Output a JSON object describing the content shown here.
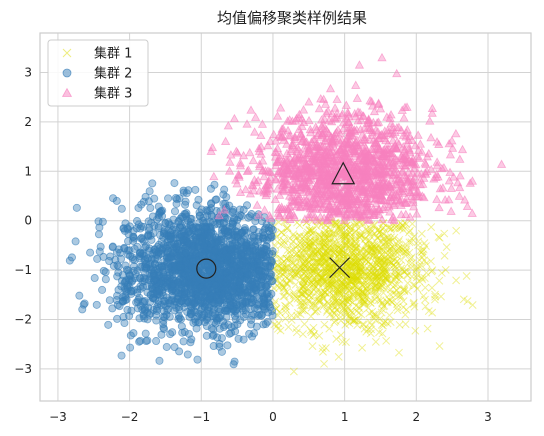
{
  "chart_data": {
    "type": "scatter",
    "title": "均值偏移聚类样例结果",
    "xlabel": "",
    "ylabel": "",
    "xlim": [
      -3.25,
      3.6
    ],
    "ylim": [
      -3.65,
      3.8
    ],
    "xticks": [
      -3,
      -2,
      -1,
      0,
      1,
      2,
      3
    ],
    "yticks": [
      -3,
      -2,
      -1,
      0,
      1,
      2,
      3
    ],
    "grid": true,
    "legend_position": "top-left",
    "series": [
      {
        "name": "集群 1",
        "marker": "x",
        "color": "#dede00",
        "x_range": [
          0,
          3.2
        ],
        "y_range": [
          -3.2,
          0
        ],
        "center": [
          0.93,
          -0.95
        ],
        "n_points": 1400
      },
      {
        "name": "集群 2",
        "marker": "circle",
        "color": "#377eb8",
        "x_range": [
          -3.0,
          0
        ],
        "y_range": [
          -3.3,
          1.2
        ],
        "center": [
          -0.93,
          -0.97
        ],
        "n_points": 1900
      },
      {
        "name": "集群 3",
        "marker": "triangle",
        "color": "#f781bf",
        "x_range": [
          -1.0,
          3.3
        ],
        "y_range": [
          0,
          3.5
        ],
        "center": [
          0.98,
          0.93
        ],
        "n_points": 1400
      }
    ],
    "cluster_centers": [
      {
        "cluster": "集群 1",
        "x": 0.93,
        "y": -0.95,
        "marker": "x"
      },
      {
        "cluster": "集群 2",
        "x": -0.93,
        "y": -0.97,
        "marker": "circle"
      },
      {
        "cluster": "集群 3",
        "x": 0.98,
        "y": 0.93,
        "marker": "triangle"
      }
    ]
  }
}
